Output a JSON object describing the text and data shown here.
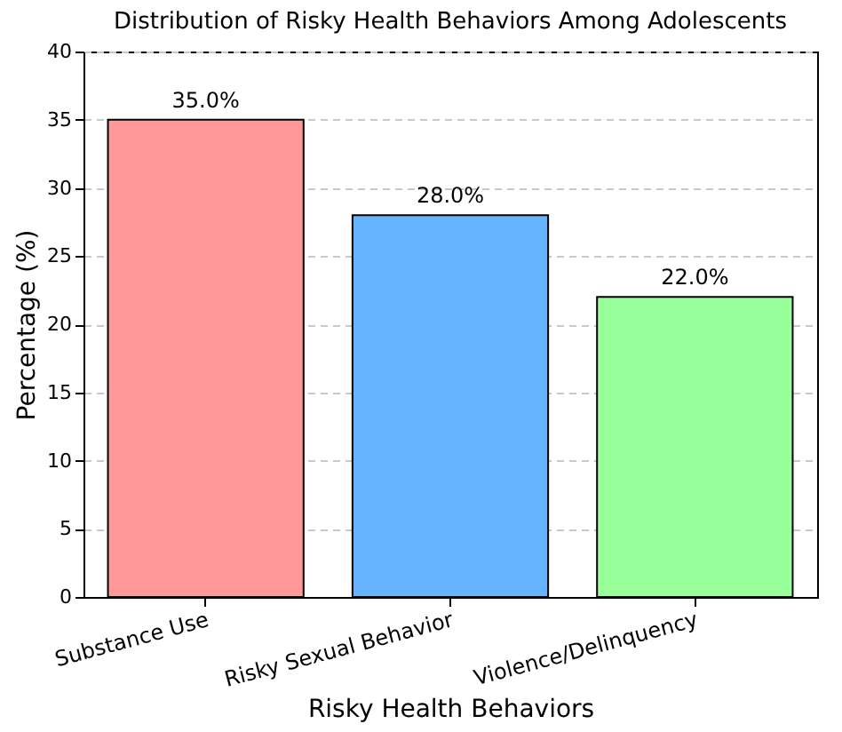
{
  "chart_data": {
    "type": "bar",
    "title": "Distribution of Risky Health Behaviors Among Adolescents",
    "xlabel": "Risky Health Behaviors",
    "ylabel": "Percentage (%)",
    "categories": [
      "Substance Use",
      "Risky Sexual Behavior",
      "Violence/Delinquency"
    ],
    "values": [
      35,
      28,
      22
    ],
    "colors": [
      "#ff9999",
      "#66b3ff",
      "#99ff99"
    ],
    "value_labels": [
      "35.0%",
      "28.0%",
      "22.0%"
    ],
    "ylim": [
      0,
      40
    ],
    "yticks": [
      0,
      5,
      10,
      15,
      20,
      25,
      30,
      35,
      40
    ],
    "grid": "y"
  }
}
